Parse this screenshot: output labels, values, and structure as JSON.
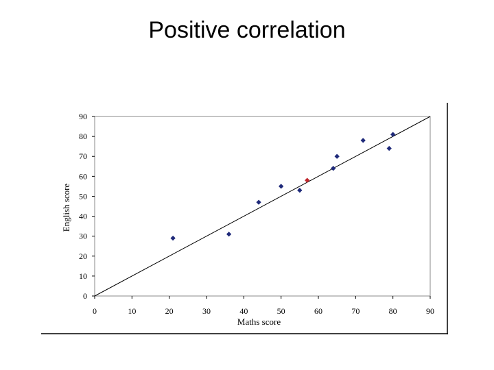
{
  "slide": {
    "title": "Positive correlation"
  },
  "chart_data": {
    "type": "scatter",
    "title": "",
    "xlabel": "Maths score",
    "ylabel": "English score",
    "xlim": [
      0,
      90
    ],
    "ylim": [
      0,
      90
    ],
    "xticks": [
      0,
      10,
      20,
      30,
      40,
      50,
      60,
      70,
      80,
      90
    ],
    "yticks": [
      0,
      10,
      20,
      30,
      40,
      50,
      60,
      70,
      80,
      90
    ],
    "grid": false,
    "legend": "none",
    "series": [
      {
        "color": "#1f2a7a",
        "x": [
          21,
          36,
          44,
          50,
          55,
          65,
          64,
          72,
          79,
          80
        ],
        "y": [
          29,
          31,
          47,
          55,
          53,
          70,
          64,
          78,
          74,
          81
        ]
      },
      {
        "color": "#c0282d",
        "x": [
          57
        ],
        "y": [
          58
        ]
      }
    ],
    "trendline": {
      "x": [
        0,
        90
      ],
      "y": [
        0,
        90
      ],
      "color": "#000000"
    }
  }
}
